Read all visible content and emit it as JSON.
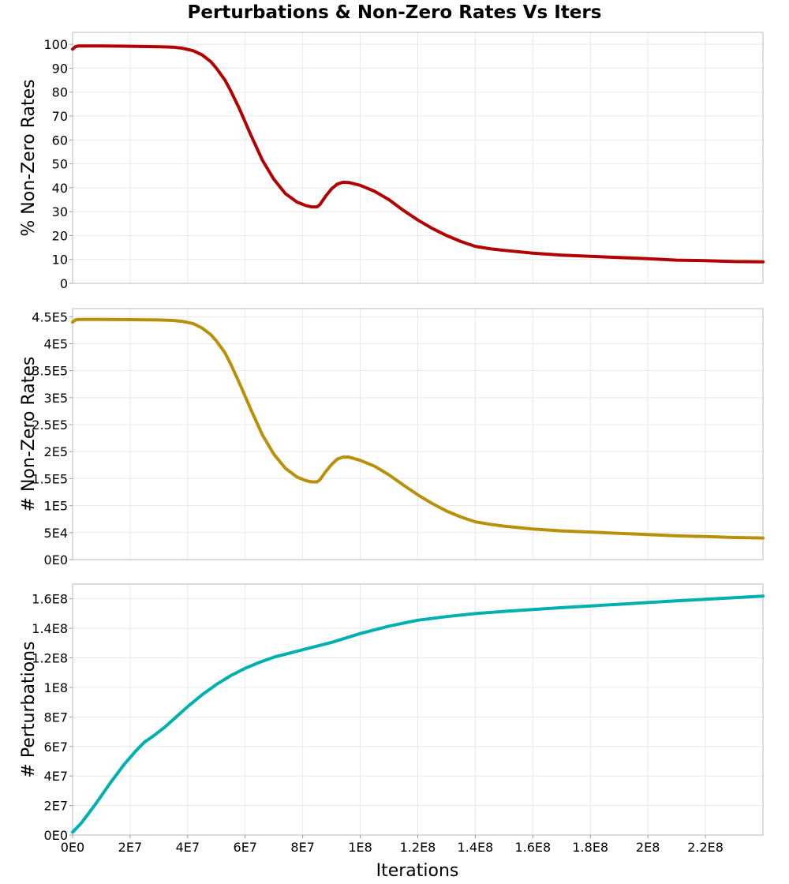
{
  "chart_data": {
    "type": "line",
    "title": "Perturbations & Non-Zero Rates Vs Iters",
    "xlabel": "Iterations",
    "xlim": [
      0,
      240000000
    ],
    "x_ticks": [
      0,
      20000000,
      40000000,
      60000000,
      80000000,
      100000000,
      120000000,
      140000000,
      160000000,
      180000000,
      200000000,
      220000000
    ],
    "x_tick_labels": [
      "0E0",
      "2E7",
      "4E7",
      "6E7",
      "8E7",
      "1E8",
      "1.2E8",
      "1.4E8",
      "1.6E8",
      "1.8E8",
      "2E8",
      "2.2E8"
    ],
    "panels": [
      {
        "name": "percent-non-zero",
        "ylabel": "% Non-Zero Rates",
        "ylim": [
          0,
          105
        ],
        "y_ticks": [
          0,
          10,
          20,
          30,
          40,
          50,
          60,
          70,
          80,
          90,
          100
        ],
        "y_tick_labels": [
          "0",
          "10",
          "20",
          "30",
          "40",
          "50",
          "60",
          "70",
          "80",
          "90",
          "100"
        ],
        "color": "#b30000",
        "series": [
          {
            "name": "% Non-Zero Rates",
            "x": [
              0,
              1000000,
              2000000,
              5000000,
              10000000,
              20000000,
              30000000,
              35000000,
              38000000,
              42000000,
              45000000,
              48000000,
              50000000,
              53000000,
              55000000,
              58000000,
              62000000,
              66000000,
              70000000,
              74000000,
              78000000,
              81000000,
              83000000,
              85000000,
              86000000,
              88000000,
              90000000,
              92000000,
              94000000,
              96000000,
              100000000,
              105000000,
              110000000,
              115000000,
              120000000,
              125000000,
              130000000,
              135000000,
              140000000,
              145000000,
              150000000,
              160000000,
              170000000,
              180000000,
              190000000,
              200000000,
              210000000,
              220000000,
              230000000,
              240000000
            ],
            "y": [
              98,
              99,
              99.3,
              99.3,
              99.3,
              99.2,
              99,
              98.8,
              98.4,
              97.3,
              95.6,
              92.8,
              90,
              85,
              80.5,
              73,
              62,
              51.5,
              43.5,
              37.5,
              34,
              32.6,
              32,
              32,
              33,
              36.5,
              39.5,
              41.5,
              42.3,
              42.2,
              41,
              38.5,
              35,
              30.5,
              26.5,
              23,
              20,
              17.5,
              15.5,
              14.5,
              13.8,
              12.6,
              11.8,
              11.3,
              10.8,
              10.3,
              9.7,
              9.5,
              9.1,
              9
            ]
          }
        ]
      },
      {
        "name": "count-non-zero",
        "ylabel": "# Non-Zero Rates",
        "ylim": [
          0,
          465000
        ],
        "y_ticks": [
          0,
          50000,
          100000,
          150000,
          200000,
          250000,
          300000,
          350000,
          400000,
          450000
        ],
        "y_tick_labels": [
          "0E0",
          "5E4",
          "1E5",
          "1.5E5",
          "2E5",
          "2.5E5",
          "3E5",
          "3.5E5",
          "4E5",
          "4.5E5"
        ],
        "color": "#b8900a",
        "series": [
          {
            "name": "# Non-Zero Rates",
            "x": [
              0,
              1000000,
              2000000,
              5000000,
              10000000,
              20000000,
              30000000,
              35000000,
              38000000,
              42000000,
              45000000,
              48000000,
              50000000,
              53000000,
              55000000,
              58000000,
              62000000,
              66000000,
              70000000,
              74000000,
              78000000,
              81000000,
              83000000,
              85000000,
              86000000,
              88000000,
              90000000,
              92000000,
              94000000,
              96000000,
              100000000,
              105000000,
              110000000,
              115000000,
              120000000,
              125000000,
              130000000,
              135000000,
              140000000,
              145000000,
              150000000,
              160000000,
              170000000,
              180000000,
              190000000,
              200000000,
              210000000,
              220000000,
              230000000,
              240000000
            ],
            "y": [
              440000,
              444000,
              445000,
              445000,
              445000,
              444500,
              444000,
              443000,
              441500,
              437000,
              429000,
              417000,
              405000,
              383000,
              362000,
              327000,
              278000,
              231000,
              195000,
              169000,
              153000,
              146500,
              144000,
              144000,
              148000,
              163000,
              176000,
              186000,
              190000,
              190000,
              184000,
              173000,
              157000,
              138000,
              120000,
              104000,
              90000,
              79000,
              70000,
              65500,
              62000,
              56800,
              53200,
              51000,
              48500,
              46500,
              44000,
              42700,
              41000,
              40000
            ]
          }
        ]
      },
      {
        "name": "perturbations",
        "ylabel": "# Perturbations",
        "ylim": [
          0,
          170000000
        ],
        "y_ticks": [
          0,
          20000000,
          40000000,
          60000000,
          80000000,
          100000000,
          120000000,
          140000000,
          160000000
        ],
        "y_tick_labels": [
          "0E0",
          "2E7",
          "4E7",
          "6E7",
          "8E7",
          "1E8",
          "1.2E8",
          "1.4E8",
          "1.6E8"
        ],
        "color": "#00b0b0",
        "series": [
          {
            "name": "# Perturbations",
            "x": [
              0,
              3000000,
              8000000,
              13000000,
              18000000,
              22000000,
              25000000,
              28000000,
              32000000,
              36000000,
              40000000,
              45000000,
              50000000,
              55000000,
              60000000,
              65000000,
              70000000,
              75000000,
              80000000,
              85000000,
              90000000,
              95000000,
              100000000,
              110000000,
              120000000,
              130000000,
              140000000,
              150000000,
              160000000,
              170000000,
              180000000,
              190000000,
              200000000,
              210000000,
              220000000,
              230000000,
              240000000
            ],
            "y": [
              2000000,
              8000000,
              21000000,
              35000000,
              48000000,
              57000000,
              63000000,
              67000000,
              73000000,
              80000000,
              87000000,
              95000000,
              102000000,
              108000000,
              113000000,
              117000000,
              120500000,
              123000000,
              125500000,
              128000000,
              130500000,
              133500000,
              136500000,
              141500000,
              145500000,
              148000000,
              150000000,
              151500000,
              152800000,
              154000000,
              155200000,
              156300000,
              157500000,
              158600000,
              159700000,
              160800000,
              161800000
            ]
          }
        ]
      }
    ]
  }
}
